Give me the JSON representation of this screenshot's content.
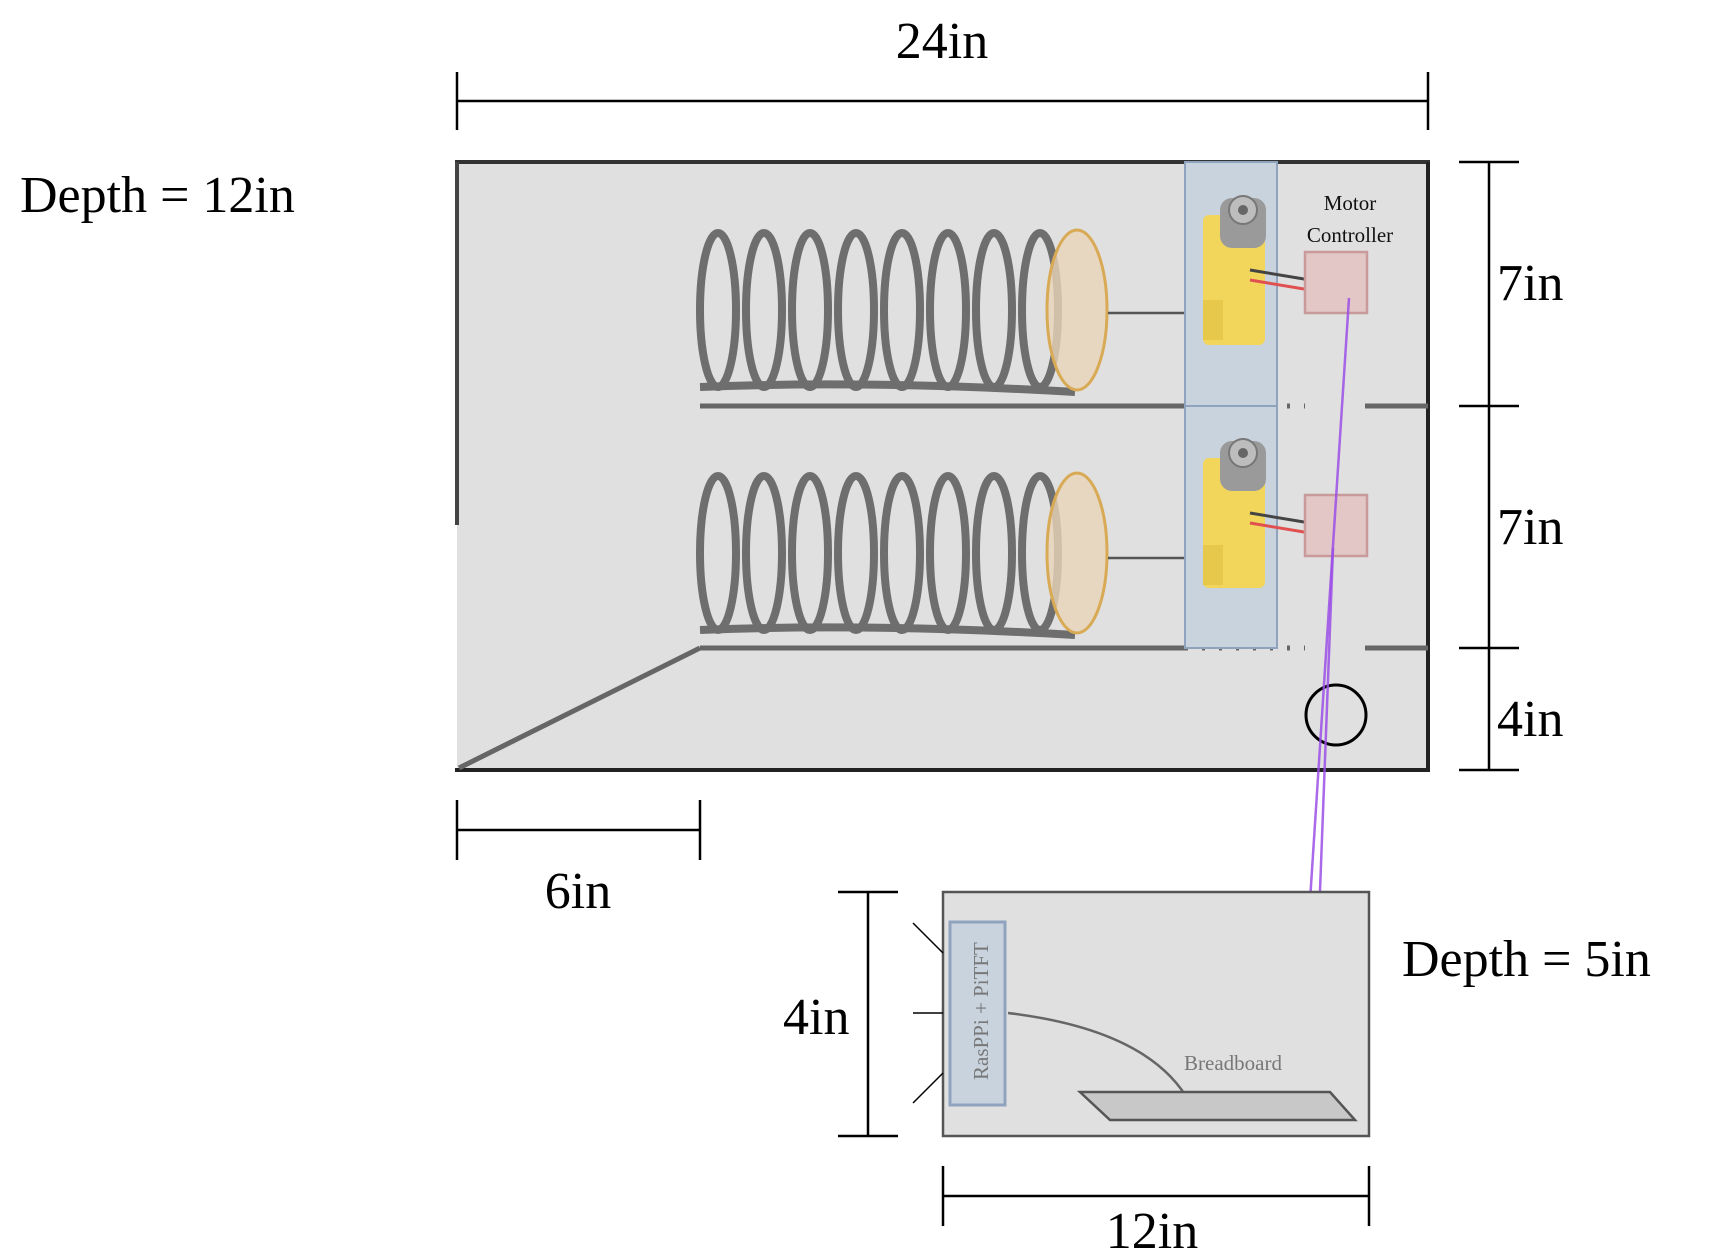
{
  "dimensions": {
    "top_width": "24in",
    "main_depth": "Depth = 12in",
    "right_upper": "7in",
    "right_middle": "7in",
    "right_lower": "4in",
    "bottom_left": "6in",
    "small_height": "4in",
    "small_depth": "Depth = 5in",
    "small_width": "12in"
  },
  "labels": {
    "motor_controller_line1": "Motor",
    "motor_controller_line2": "Controller",
    "raspi": "RasPPi + PiTFT",
    "breadboard": "Breadboard"
  },
  "colors": {
    "box_fill": "#e0e0e0",
    "motor_column": "#c9d3de",
    "motor_body": "#f2d65c",
    "controller_fill": "#e3c6c6",
    "controller_stroke": "#c99a9a",
    "wire_purple": "#9b4de6",
    "pusher_fill": "#e8d4b8",
    "pusher_stroke": "#d9aa55"
  }
}
